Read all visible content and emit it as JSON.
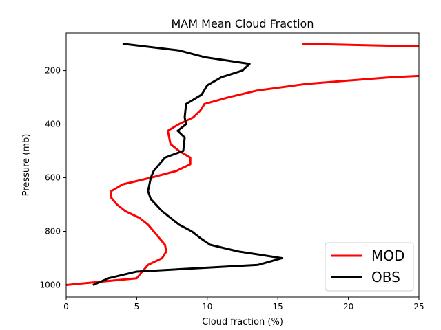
{
  "chart_data": {
    "type": "line",
    "title": "MAM Mean Cloud Fraction",
    "xlabel": "Cloud fraction (%)",
    "ylabel": "Pressure (mb)",
    "xlim": [
      0,
      25
    ],
    "ylim": [
      1045,
      60
    ],
    "y_inverted": true,
    "xticks": [
      0,
      5,
      10,
      15,
      20,
      25
    ],
    "yticks": [
      200,
      400,
      600,
      800,
      1000
    ],
    "grid": false,
    "legend_position": "bottom-right",
    "series": [
      {
        "name": "MOD",
        "color": "#ff0000",
        "segments": [
          [
            [
              16.7,
              100
            ],
            [
              25,
              110
            ]
          ],
          [
            [
              25,
              220
            ],
            [
              23,
              225
            ],
            [
              17,
              250
            ],
            [
              13.5,
              275
            ],
            [
              11.5,
              300
            ],
            [
              9.8,
              325
            ],
            [
              9.5,
              350
            ],
            [
              9.0,
              375
            ],
            [
              8.0,
              400
            ],
            [
              7.2,
              425
            ],
            [
              7.4,
              475
            ],
            [
              8.0,
              500
            ],
            [
              8.8,
              525
            ],
            [
              8.8,
              550
            ],
            [
              7.8,
              575
            ],
            [
              6.0,
              600
            ],
            [
              4.0,
              625
            ],
            [
              3.2,
              650
            ],
            [
              3.2,
              675
            ],
            [
              3.6,
              700
            ],
            [
              4.2,
              725
            ],
            [
              5.2,
              750
            ],
            [
              5.8,
              775
            ],
            [
              6.2,
              800
            ],
            [
              7.0,
              850
            ],
            [
              7.1,
              875
            ],
            [
              6.8,
              900
            ],
            [
              5.8,
              925
            ],
            [
              5.0,
              975
            ],
            [
              3.0,
              985
            ],
            [
              0,
              1000
            ]
          ]
        ]
      },
      {
        "name": "OBS",
        "color": "#000000",
        "segments": [
          [
            [
              4.0,
              100
            ],
            [
              8.0,
              125
            ],
            [
              9.8,
              150
            ],
            [
              13.0,
              175
            ],
            [
              12.5,
              200
            ],
            [
              11.0,
              225
            ],
            [
              10.0,
              255
            ],
            [
              9.6,
              290
            ],
            [
              8.5,
              325
            ],
            [
              8.4,
              375
            ],
            [
              8.5,
              400
            ],
            [
              7.9,
              425
            ],
            [
              8.4,
              450
            ],
            [
              8.3,
              500
            ],
            [
              7.0,
              525
            ],
            [
              6.2,
              575
            ],
            [
              6.0,
              600
            ],
            [
              5.8,
              650
            ],
            [
              6.0,
              680
            ],
            [
              6.8,
              725
            ],
            [
              8.0,
              775
            ],
            [
              8.9,
              800
            ],
            [
              9.5,
              825
            ],
            [
              10.2,
              850
            ],
            [
              12.2,
              875
            ],
            [
              15.3,
              900
            ],
            [
              13.6,
              925
            ],
            [
              5.0,
              950
            ],
            [
              3.0,
              975
            ],
            [
              1.9,
              1000
            ]
          ]
        ]
      }
    ]
  }
}
